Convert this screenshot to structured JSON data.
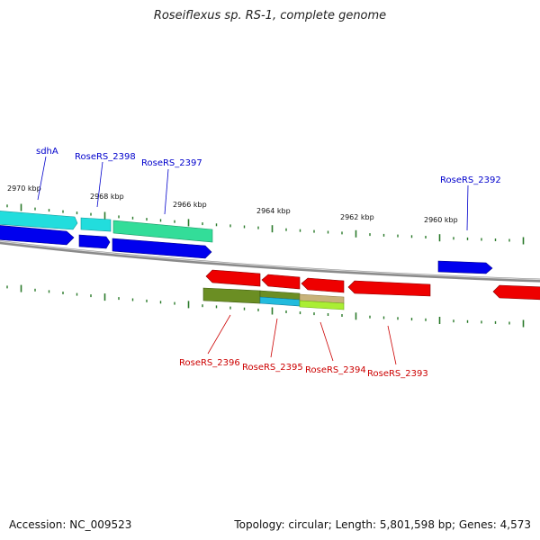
{
  "header": {
    "title": "Roseiflexus sp. RS-1, complete genome"
  },
  "footer": {
    "accession": "Accession: NC_009523",
    "summary": "Topology: circular; Length: 5,801,598 bp; Genes: 4,573"
  },
  "colors": {
    "forward_label": "#0000cc",
    "reverse_label": "#cc0000",
    "backbone": "#8a8a8a",
    "tick": "#2a7a2a",
    "blue_gene": "#0000ee",
    "red_gene": "#ee0000",
    "cyan_gene": "#22dddd",
    "green_gene": "#33dd99",
    "olive_gene": "#6b8e23",
    "tan_gene": "#c8b37a",
    "lime_gene": "#aaee33"
  },
  "scale_labels": [
    "2970 kbp",
    "2968 kbp",
    "2966 kbp",
    "2964 kbp",
    "2962 kbp",
    "2960 kbp"
  ],
  "forward_gene_labels": [
    "sdhA",
    "RoseRS_2398",
    "RoseRS_2397",
    "RoseRS_2392"
  ],
  "reverse_gene_labels": [
    "RoseRS_2396",
    "RoseRS_2395",
    "RoseRS_2394",
    "RoseRS_2393"
  ]
}
